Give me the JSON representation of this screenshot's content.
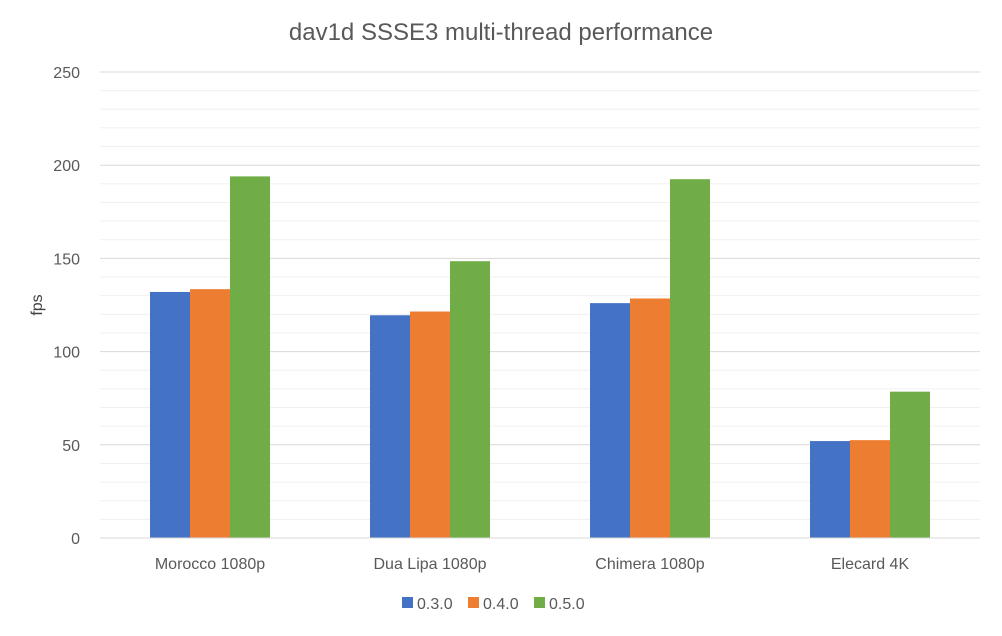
{
  "chart_data": {
    "type": "bar",
    "title": "dav1d SSSE3 multi-thread performance",
    "xlabel": "",
    "ylabel": "fps",
    "categories": [
      "Morocco 1080p",
      "Dua Lipa 1080p",
      "Chimera 1080p",
      "Elecard 4K"
    ],
    "series": [
      {
        "name": "0.3.0",
        "color": "#4472C4",
        "values": [
          132,
          119.5,
          126,
          52
        ]
      },
      {
        "name": "0.4.0",
        "color": "#ED7D31",
        "values": [
          133.5,
          121.5,
          128.5,
          52.5
        ]
      },
      {
        "name": "0.5.0",
        "color": "#70AD47",
        "values": [
          194,
          148.5,
          192.5,
          78.5
        ]
      }
    ],
    "ylim": [
      0,
      250
    ],
    "yticks": [
      "0",
      "50",
      "100",
      "150",
      "200",
      "250"
    ],
    "grid": true,
    "legend_position": "bottom"
  }
}
